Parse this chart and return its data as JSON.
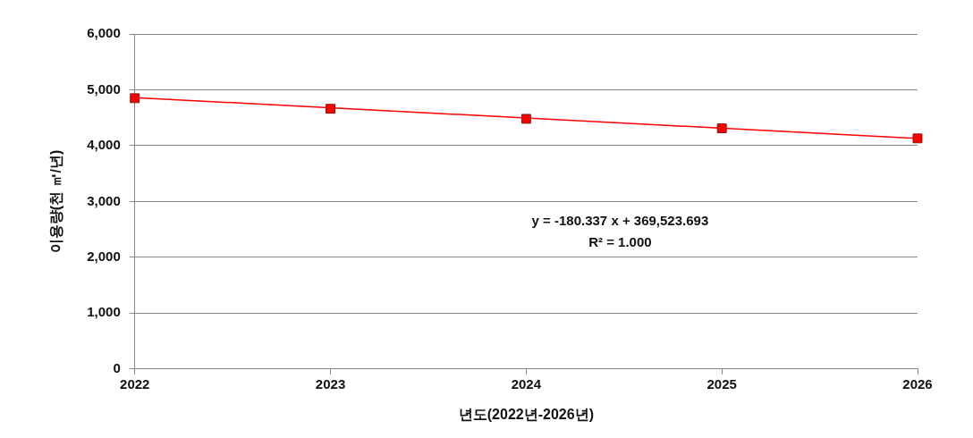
{
  "chart_data": {
    "type": "scatter",
    "xlabel": "년도(2022년-2026년)",
    "ylabel": "이용량(천 ㎥/년)",
    "x": [
      2022,
      2023,
      2024,
      2025,
      2026
    ],
    "series": [
      {
        "color": "#ff0000",
        "values": [
          4850,
          4660,
          4480,
          4310,
          4130
        ],
        "marker": "square"
      },
      {
        "type": "line",
        "color": "#ff0000",
        "x": [
          2022,
          2026
        ],
        "values": [
          4860,
          4130
        ],
        "marker": "none",
        "line_style": "solid"
      }
    ],
    "xlim": [
      2022,
      2026
    ],
    "xticks": [
      2022,
      2023,
      2024,
      2025,
      2026
    ],
    "ylim": [
      0,
      6000
    ],
    "yticks": [
      {
        "value": 0,
        "label": "0"
      },
      {
        "value": 1000,
        "label": "1,000"
      },
      {
        "value": 2000,
        "label": "2,000"
      },
      {
        "value": 3000,
        "label": "3,000"
      },
      {
        "value": 4000,
        "label": "4,000"
      },
      {
        "value": 5000,
        "label": "5,000"
      },
      {
        "value": 6000,
        "label": "6,000"
      }
    ],
    "grid": "y",
    "legend": false,
    "annotations": [
      "y = -180.337 x + 369,523.693",
      "R² = 1.000"
    ]
  }
}
